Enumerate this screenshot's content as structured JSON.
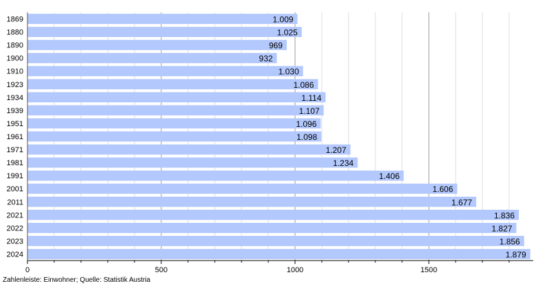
{
  "chart_data": {
    "type": "bar",
    "orientation": "horizontal",
    "categories": [
      "1869",
      "1880",
      "1890",
      "1900",
      "1910",
      "1923",
      "1934",
      "1939",
      "1951",
      "1961",
      "1971",
      "1981",
      "1991",
      "2001",
      "2011",
      "2021",
      "2022",
      "2023",
      "2024"
    ],
    "values": [
      1009,
      1025,
      969,
      932,
      1030,
      1086,
      1114,
      1107,
      1096,
      1098,
      1207,
      1234,
      1406,
      1606,
      1677,
      1836,
      1827,
      1856,
      1879
    ],
    "value_labels": [
      "1.009",
      "1.025",
      "969",
      "932",
      "1.030",
      "1.086",
      "1.114",
      "1.107",
      "1.096",
      "1.098",
      "1.207",
      "1.234",
      "1.406",
      "1.606",
      "1.677",
      "1.836",
      "1.827",
      "1.856",
      "1.879"
    ],
    "x_ticks": [
      0,
      500,
      1000,
      1500
    ],
    "x_tick_labels": [
      "0",
      "500",
      "1000",
      "1500"
    ],
    "xlim": [
      0,
      1890
    ],
    "minor_tick_step": 100,
    "grid": true,
    "bar_color": "#b3c8fc",
    "source_note": "Zahlenleiste: Einwohner; Quelle: Statistik Austria"
  }
}
